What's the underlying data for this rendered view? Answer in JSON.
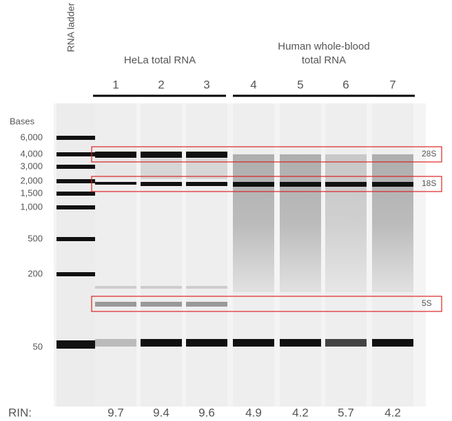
{
  "ladder_label": "RNA ladder",
  "groups": [
    {
      "lines": [
        "HeLa total RNA"
      ]
    },
    {
      "lines": [
        "Human whole-blood",
        "total RNA"
      ]
    }
  ],
  "lanes": [
    "1",
    "2",
    "3",
    "4",
    "5",
    "6",
    "7"
  ],
  "axis_title": "Bases",
  "size_labels": [
    "6,000",
    "4,000",
    "3,000",
    "2,000",
    "1,500",
    "1,000",
    "500",
    "200",
    "50"
  ],
  "boxes": [
    "28S",
    "18S",
    "5S"
  ],
  "rin_label": "RIN:",
  "rin": [
    9.7,
    9.4,
    9.6,
    4.9,
    4.2,
    5.7,
    4.2
  ]
}
